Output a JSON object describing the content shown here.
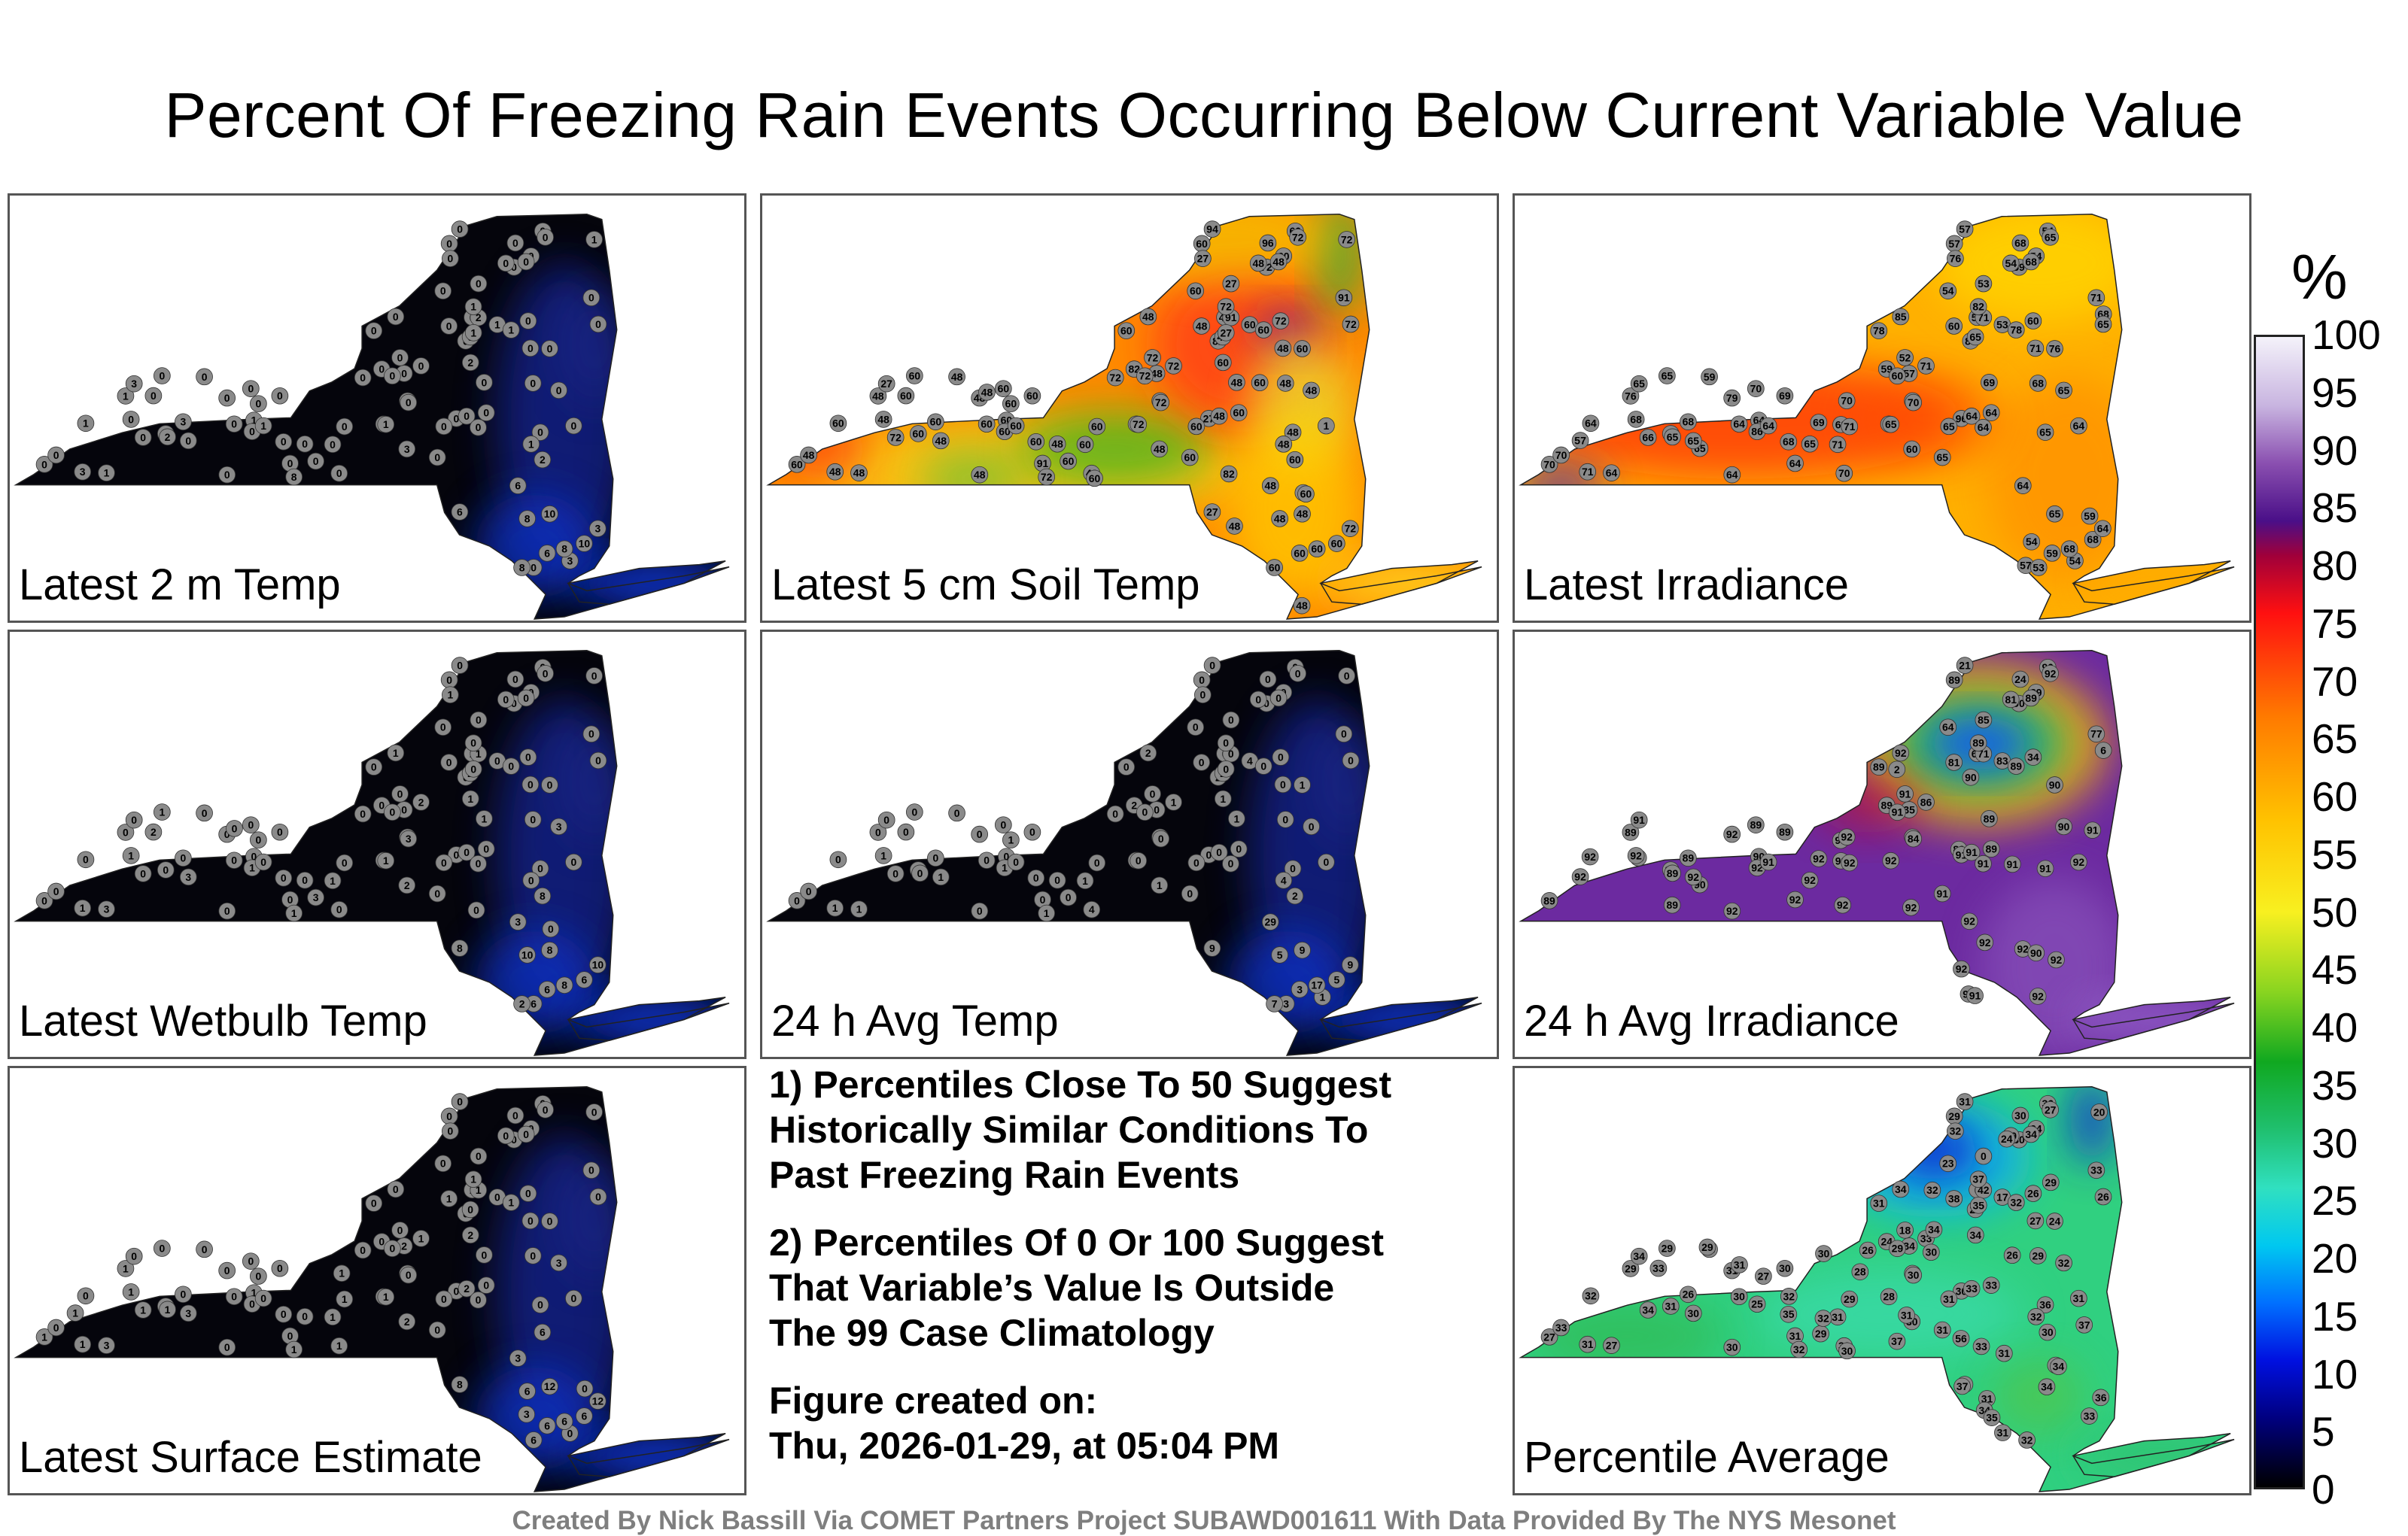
{
  "title": "Percent Of Freezing Rain Events Occurring Below Current Variable Value",
  "panels": [
    {
      "label": "Latest 2 m Temp",
      "scheme": "cold",
      "values": [
        0,
        0,
        0,
        0,
        0,
        0,
        0,
        0,
        0,
        0,
        0,
        0,
        0,
        1,
        0,
        0,
        0,
        0,
        1,
        0,
        0,
        0,
        0,
        2,
        1,
        0,
        0,
        1,
        0,
        0,
        0,
        0,
        2,
        1,
        0,
        0,
        1,
        0,
        0,
        0,
        0,
        0,
        0,
        0,
        0,
        1,
        0,
        0,
        0,
        0,
        3,
        0,
        3,
        0,
        0,
        0,
        0,
        0,
        1,
        0,
        0,
        0,
        0,
        2,
        0,
        0,
        1,
        1,
        0,
        0,
        0,
        0,
        0,
        0,
        3,
        1,
        0,
        0,
        0,
        0,
        0,
        1,
        3,
        2,
        8,
        1,
        0,
        3,
        0,
        6,
        6,
        3,
        10,
        8,
        8,
        10,
        6,
        8
      ]
    },
    {
      "label": "Latest 5 cm Soil Temp",
      "scheme": "soil",
      "values": [
        72,
        60,
        48,
        60,
        60,
        27,
        60,
        96,
        72,
        48,
        94,
        91,
        27,
        72,
        82,
        72,
        48,
        48,
        60,
        72,
        48,
        82,
        72,
        91,
        60,
        60,
        48,
        72,
        60,
        48,
        72,
        48,
        60,
        27,
        60,
        48,
        60,
        48,
        1,
        60,
        72,
        60,
        48,
        27,
        60,
        48,
        48,
        60,
        60,
        72,
        60,
        48,
        27,
        48,
        60,
        60,
        48,
        60,
        72,
        48,
        72,
        60,
        60,
        48,
        60,
        48,
        72,
        60,
        48,
        60,
        91,
        48,
        60,
        48,
        48,
        60,
        72,
        48,
        60,
        48,
        60,
        48,
        48,
        60,
        72,
        48,
        60,
        82,
        60,
        60,
        48,
        72,
        48,
        60,
        48,
        60,
        27,
        60,
        48,
        60,
        48,
        48
      ]
    },
    {
      "label": "Latest Irradiance",
      "scheme": "irr",
      "values": [
        59,
        57,
        54,
        54,
        54,
        53,
        54,
        68,
        65,
        68,
        57,
        71,
        76,
        68,
        86,
        60,
        57,
        55,
        53,
        52,
        60,
        59,
        71,
        71,
        78,
        76,
        85,
        82,
        78,
        71,
        65,
        65,
        68,
        70,
        70,
        69,
        64,
        65,
        64,
        64,
        60,
        69,
        79,
        96,
        86,
        76,
        65,
        65,
        71,
        70,
        68,
        65,
        65,
        64,
        65,
        64,
        59,
        65,
        71,
        68,
        69,
        65,
        57,
        65,
        64,
        68,
        65,
        64,
        65,
        70,
        64,
        64,
        65,
        65,
        71,
        64,
        66,
        70,
        68,
        70,
        71,
        64,
        60,
        68,
        57,
        59,
        54,
        54,
        53,
        59,
        64,
        64,
        65,
        68
      ]
    },
    {
      "label": "Latest Wetbulb Temp",
      "scheme": "cold",
      "values": [
        0,
        0,
        0,
        0,
        0,
        0,
        0,
        0,
        0,
        0,
        0,
        0,
        1,
        0,
        0,
        0,
        0,
        1,
        0,
        0,
        0,
        0,
        2,
        1,
        0,
        0,
        1,
        0,
        0,
        0,
        0,
        2,
        1,
        0,
        0,
        1,
        0,
        0,
        0,
        0,
        0,
        0,
        0,
        0,
        1,
        0,
        0,
        0,
        0,
        3,
        0,
        3,
        0,
        0,
        0,
        0,
        0,
        1,
        0,
        0,
        0,
        0,
        2,
        0,
        0,
        1,
        1,
        0,
        0,
        0,
        0,
        0,
        0,
        3,
        1,
        0,
        0,
        0,
        0,
        0,
        1,
        3,
        2,
        8,
        1,
        0,
        3,
        0,
        6,
        6,
        3,
        10,
        8,
        8,
        10,
        6,
        8,
        2,
        0
      ]
    },
    {
      "label": "24 h Avg Temp",
      "scheme": "cold",
      "values": [
        0,
        0,
        0,
        0,
        0,
        0,
        0,
        0,
        0,
        0,
        0,
        0,
        0,
        0,
        2,
        0,
        0,
        0,
        4,
        0,
        0,
        2,
        1,
        0,
        0,
        1,
        2,
        0,
        0,
        0,
        0,
        2,
        1,
        0,
        0,
        1,
        0,
        0,
        0,
        0,
        0,
        0,
        0,
        0,
        1,
        0,
        0,
        0,
        0,
        0,
        0,
        0,
        0,
        0,
        0,
        0,
        0,
        0,
        0,
        0,
        0,
        1,
        0,
        0,
        0,
        1,
        0,
        0,
        0,
        0,
        0,
        0,
        0,
        1,
        1,
        0,
        0,
        0,
        0,
        4,
        1,
        1,
        1,
        2,
        1,
        4,
        0,
        1,
        3,
        3,
        29,
        9,
        9,
        17,
        5,
        5,
        9,
        7
      ]
    },
    {
      "label": "24 h Avg Irradiance",
      "scheme": "dirr",
      "values": [
        90,
        89,
        81,
        64,
        89,
        85,
        90,
        24,
        92,
        89,
        21,
        77,
        2,
        6,
        90,
        34,
        35,
        64,
        83,
        91,
        81,
        89,
        86,
        71,
        89,
        90,
        92,
        89,
        89,
        89,
        91,
        90,
        92,
        92,
        89,
        89,
        90,
        91,
        92,
        89,
        91,
        89,
        92,
        91,
        92,
        89,
        90,
        91,
        92,
        84,
        89,
        90,
        91,
        91,
        92,
        89,
        90,
        92,
        92,
        91,
        92,
        90,
        92,
        89,
        91,
        92,
        92,
        91,
        92,
        89,
        92,
        92,
        91,
        92,
        91,
        92,
        92,
        92,
        92,
        92,
        90,
        91,
        92
      ]
    },
    {
      "label": "Latest Surface Estimate",
      "scheme": "cold",
      "values": [
        0,
        0,
        0,
        0,
        0,
        0,
        0,
        0,
        0,
        0,
        0,
        0,
        0,
        0,
        0,
        0,
        2,
        1,
        0,
        0,
        1,
        0,
        1,
        1,
        1,
        0,
        0,
        1,
        0,
        0,
        0,
        0,
        2,
        1,
        0,
        0,
        1,
        0,
        0,
        0,
        0,
        0,
        0,
        0,
        0,
        1,
        0,
        1,
        1,
        0,
        0,
        3,
        0,
        2,
        0,
        0,
        0,
        0,
        1,
        0,
        0,
        0,
        1,
        1,
        0,
        1,
        1,
        0,
        0,
        1,
        0,
        0,
        0,
        3,
        1,
        0,
        1,
        0,
        0,
        1,
        1,
        3,
        2,
        6,
        1,
        0,
        3,
        0,
        6,
        6,
        3,
        12,
        12,
        6,
        6,
        6,
        8
      ]
    },
    {
      "label": "Percentile Average",
      "scheme": "avg",
      "values": [
        30,
        29,
        29,
        23,
        24,
        0,
        36,
        30,
        27,
        34,
        31,
        33,
        32,
        20,
        24,
        26,
        34,
        0,
        17,
        18,
        38,
        24,
        33,
        42,
        32,
        24,
        34,
        37,
        31,
        27,
        26,
        29,
        34,
        35,
        32,
        29,
        34,
        36,
        31,
        33,
        29,
        30,
        31,
        30,
        25,
        29,
        34,
        31,
        29,
        30,
        26,
        32,
        34,
        33,
        31,
        30,
        33,
        29,
        28,
        29,
        26,
        27,
        33,
        31,
        26,
        29,
        30,
        30,
        28,
        27,
        31,
        30,
        31,
        30,
        31,
        32,
        34,
        33,
        35,
        33,
        31,
        27,
        30,
        30,
        32,
        32,
        29,
        33,
        30,
        37,
        32,
        37,
        31,
        56,
        32,
        33,
        26,
        32,
        33,
        34,
        31,
        31,
        36,
        37,
        34,
        35,
        31,
        34
      ]
    }
  ],
  "notes": {
    "note1": "1) Percentiles Close To 50 Suggest\nHistorically Similar Conditions To\nPast Freezing Rain Events",
    "note2": "2) Percentiles Of 0 Or 100 Suggest\nThat Variable’s Value Is Outside\nThe 99 Case Climatology",
    "created": "Figure created on:\nThu, 2026-01-29, at 05:04 PM"
  },
  "colorbar": {
    "unit": "%",
    "ticks": [
      "100",
      "95",
      "90",
      "85",
      "80",
      "75",
      "70",
      "65",
      "60",
      "55",
      "50",
      "45",
      "40",
      "35",
      "30",
      "25",
      "20",
      "15",
      "10",
      "5",
      "0"
    ]
  },
  "footer": "Created By Nick Bassill Via COMET Partners Project SUBAWD001611 With Data Provided By The NYS Mesonet",
  "colors": {
    "cold_base": "#050510",
    "cold_warm": "#1a2aa0",
    "station": "#8a8a8a",
    "border": "#555555"
  }
}
